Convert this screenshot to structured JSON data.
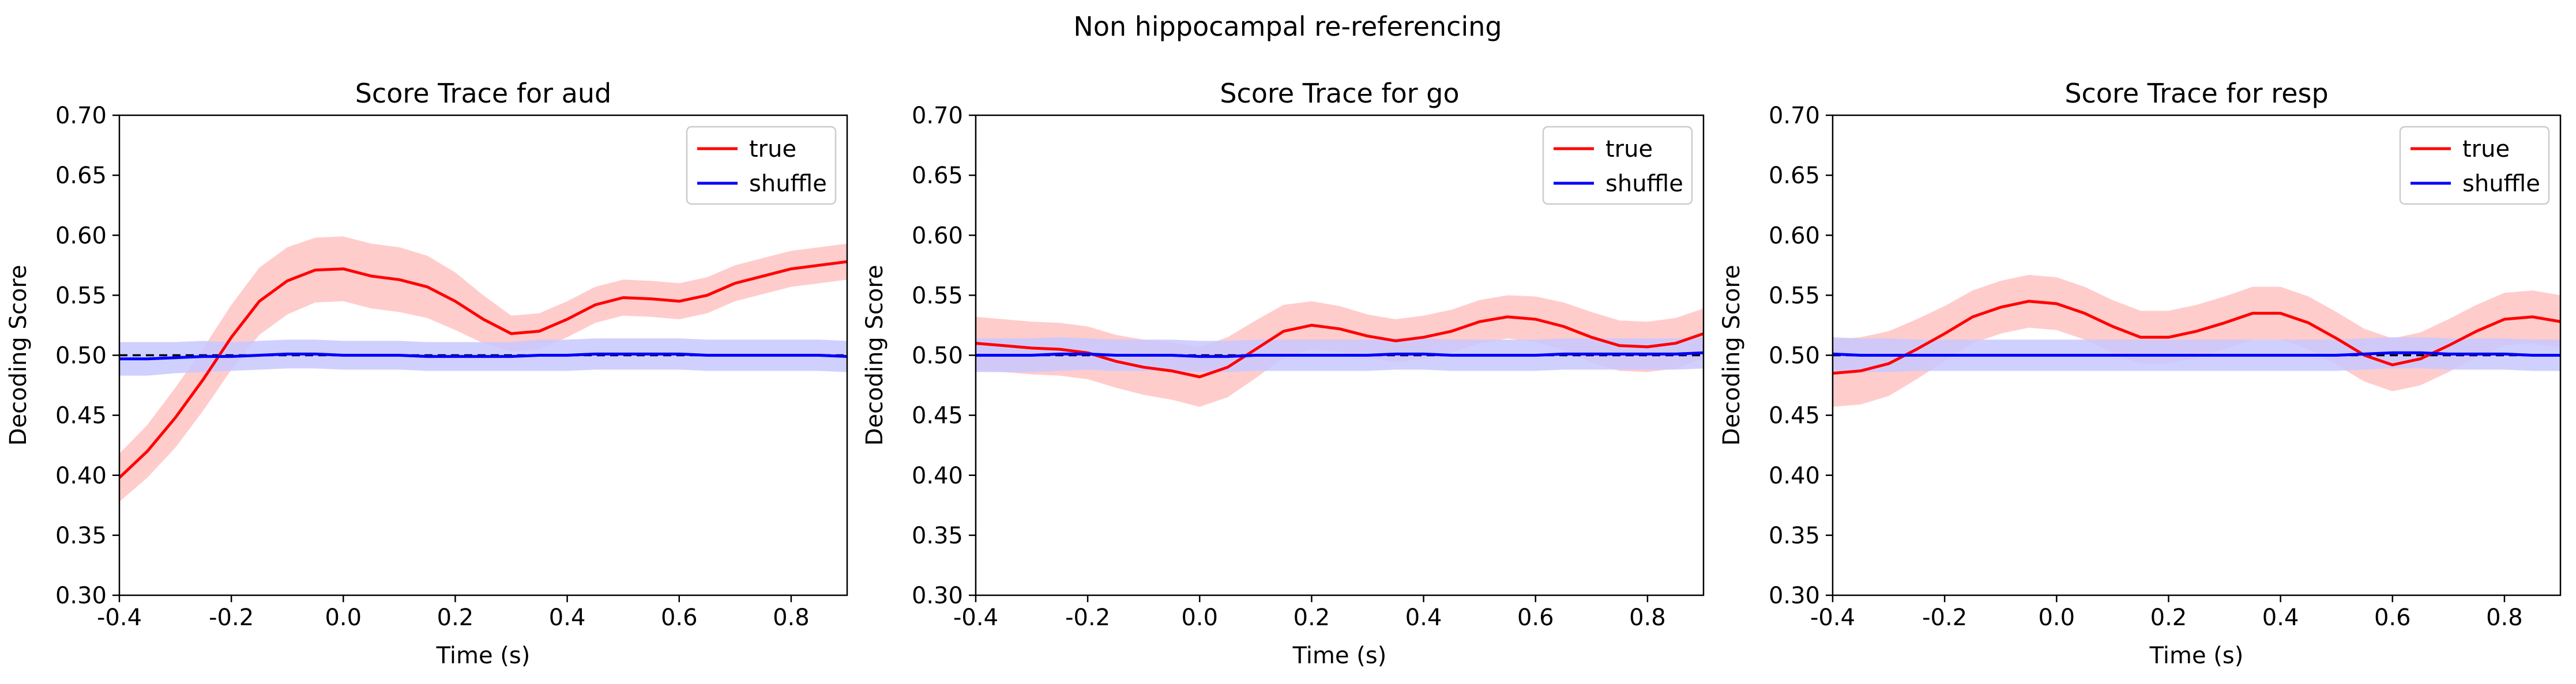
{
  "figure": {
    "suptitle": "Non hippocampal re-referencing"
  },
  "chart_data": [
    {
      "type": "line",
      "title": "Score Trace for aud",
      "xlabel": "Time (s)",
      "ylabel": "Decoding Score",
      "xlim": [
        -0.4,
        0.9
      ],
      "ylim": [
        0.3,
        0.7
      ],
      "xticks": [
        "-0.4",
        "-0.2",
        "0.0",
        "0.2",
        "0.4",
        "0.6",
        "0.8"
      ],
      "yticks": [
        "0.30",
        "0.35",
        "0.40",
        "0.45",
        "0.50",
        "0.55",
        "0.60",
        "0.65",
        "0.70"
      ],
      "chance_level": 0.5,
      "legend_position": "upper-right",
      "series": [
        {
          "name": "true",
          "color": "#ff0000",
          "band_color": "#ffcccc",
          "x": [
            -0.4,
            -0.35,
            -0.3,
            -0.25,
            -0.2,
            -0.15,
            -0.1,
            -0.05,
            0.0,
            0.05,
            0.1,
            0.15,
            0.2,
            0.25,
            0.3,
            0.35,
            0.4,
            0.45,
            0.5,
            0.55,
            0.6,
            0.65,
            0.7,
            0.75,
            0.8,
            0.85,
            0.9
          ],
          "values": [
            0.398,
            0.42,
            0.448,
            0.48,
            0.515,
            0.545,
            0.562,
            0.571,
            0.572,
            0.566,
            0.563,
            0.557,
            0.545,
            0.53,
            0.518,
            0.52,
            0.53,
            0.542,
            0.548,
            0.547,
            0.545,
            0.55,
            0.56,
            0.566,
            0.572,
            0.575,
            0.578
          ],
          "band": [
            0.02,
            0.022,
            0.025,
            0.026,
            0.027,
            0.028,
            0.028,
            0.027,
            0.027,
            0.027,
            0.027,
            0.026,
            0.024,
            0.02,
            0.015,
            0.015,
            0.015,
            0.015,
            0.015,
            0.015,
            0.015,
            0.015,
            0.015,
            0.015,
            0.015,
            0.015,
            0.015
          ]
        },
        {
          "name": "shuffle",
          "color": "#0000ff",
          "band_color": "#c8c8ff",
          "x": [
            -0.4,
            -0.35,
            -0.3,
            -0.25,
            -0.2,
            -0.15,
            -0.1,
            -0.05,
            0.0,
            0.05,
            0.1,
            0.15,
            0.2,
            0.25,
            0.3,
            0.35,
            0.4,
            0.45,
            0.5,
            0.55,
            0.6,
            0.65,
            0.7,
            0.75,
            0.8,
            0.85,
            0.9
          ],
          "values": [
            0.497,
            0.497,
            0.498,
            0.499,
            0.499,
            0.5,
            0.501,
            0.501,
            0.5,
            0.5,
            0.5,
            0.499,
            0.499,
            0.499,
            0.499,
            0.5,
            0.5,
            0.501,
            0.501,
            0.501,
            0.501,
            0.5,
            0.5,
            0.5,
            0.5,
            0.5,
            0.499
          ],
          "band": [
            0.014,
            0.014,
            0.013,
            0.013,
            0.012,
            0.012,
            0.012,
            0.012,
            0.012,
            0.012,
            0.012,
            0.012,
            0.012,
            0.012,
            0.012,
            0.013,
            0.013,
            0.013,
            0.013,
            0.013,
            0.013,
            0.013,
            0.013,
            0.013,
            0.013,
            0.013,
            0.013
          ]
        }
      ]
    },
    {
      "type": "line",
      "title": "Score Trace for go",
      "xlabel": "Time (s)",
      "ylabel": "Decoding Score",
      "xlim": [
        -0.4,
        0.9
      ],
      "ylim": [
        0.3,
        0.7
      ],
      "xticks": [
        "-0.4",
        "-0.2",
        "0.0",
        "0.2",
        "0.4",
        "0.6",
        "0.8"
      ],
      "yticks": [
        "0.30",
        "0.35",
        "0.40",
        "0.45",
        "0.50",
        "0.55",
        "0.60",
        "0.65",
        "0.70"
      ],
      "chance_level": 0.5,
      "legend_position": "upper-right",
      "series": [
        {
          "name": "true",
          "color": "#ff0000",
          "band_color": "#ffcccc",
          "x": [
            -0.4,
            -0.35,
            -0.3,
            -0.25,
            -0.2,
            -0.15,
            -0.1,
            -0.05,
            0.0,
            0.05,
            0.1,
            0.15,
            0.2,
            0.25,
            0.3,
            0.35,
            0.4,
            0.45,
            0.5,
            0.55,
            0.6,
            0.65,
            0.7,
            0.75,
            0.8,
            0.85,
            0.9
          ],
          "values": [
            0.51,
            0.508,
            0.506,
            0.505,
            0.502,
            0.495,
            0.49,
            0.487,
            0.482,
            0.49,
            0.505,
            0.52,
            0.525,
            0.522,
            0.516,
            0.512,
            0.515,
            0.52,
            0.528,
            0.532,
            0.53,
            0.524,
            0.515,
            0.508,
            0.507,
            0.51,
            0.518
          ],
          "band": [
            0.022,
            0.022,
            0.022,
            0.022,
            0.022,
            0.022,
            0.023,
            0.024,
            0.025,
            0.025,
            0.024,
            0.022,
            0.02,
            0.019,
            0.018,
            0.018,
            0.018,
            0.018,
            0.018,
            0.018,
            0.019,
            0.02,
            0.021,
            0.021,
            0.021,
            0.021,
            0.021
          ]
        },
        {
          "name": "shuffle",
          "color": "#0000ff",
          "band_color": "#c8c8ff",
          "x": [
            -0.4,
            -0.35,
            -0.3,
            -0.25,
            -0.2,
            -0.15,
            -0.1,
            -0.05,
            0.0,
            0.05,
            0.1,
            0.15,
            0.2,
            0.25,
            0.3,
            0.35,
            0.4,
            0.45,
            0.5,
            0.55,
            0.6,
            0.65,
            0.7,
            0.75,
            0.8,
            0.85,
            0.9
          ],
          "values": [
            0.5,
            0.5,
            0.5,
            0.501,
            0.501,
            0.5,
            0.5,
            0.5,
            0.499,
            0.499,
            0.5,
            0.5,
            0.5,
            0.5,
            0.5,
            0.501,
            0.501,
            0.5,
            0.5,
            0.5,
            0.5,
            0.501,
            0.501,
            0.501,
            0.501,
            0.501,
            0.502
          ],
          "band": [
            0.014,
            0.014,
            0.014,
            0.014,
            0.013,
            0.013,
            0.013,
            0.013,
            0.013,
            0.013,
            0.013,
            0.013,
            0.013,
            0.013,
            0.013,
            0.013,
            0.013,
            0.013,
            0.013,
            0.013,
            0.013,
            0.013,
            0.013,
            0.013,
            0.013,
            0.013,
            0.013
          ]
        }
      ]
    },
    {
      "type": "line",
      "title": "Score Trace for resp",
      "xlabel": "Time (s)",
      "ylabel": "Decoding Score",
      "xlim": [
        -0.4,
        0.9
      ],
      "ylim": [
        0.3,
        0.7
      ],
      "xticks": [
        "-0.4",
        "-0.2",
        "0.0",
        "0.2",
        "0.4",
        "0.6",
        "0.8"
      ],
      "yticks": [
        "0.30",
        "0.35",
        "0.40",
        "0.45",
        "0.50",
        "0.55",
        "0.60",
        "0.65",
        "0.70"
      ],
      "chance_level": 0.5,
      "legend_position": "upper-right",
      "series": [
        {
          "name": "true",
          "color": "#ff0000",
          "band_color": "#ffcccc",
          "x": [
            -0.4,
            -0.35,
            -0.3,
            -0.25,
            -0.2,
            -0.15,
            -0.1,
            -0.05,
            0.0,
            0.05,
            0.1,
            0.15,
            0.2,
            0.25,
            0.3,
            0.35,
            0.4,
            0.45,
            0.5,
            0.55,
            0.6,
            0.65,
            0.7,
            0.75,
            0.8,
            0.85,
            0.9
          ],
          "values": [
            0.485,
            0.487,
            0.493,
            0.505,
            0.518,
            0.532,
            0.54,
            0.545,
            0.543,
            0.535,
            0.524,
            0.515,
            0.515,
            0.52,
            0.527,
            0.535,
            0.535,
            0.527,
            0.514,
            0.5,
            0.492,
            0.497,
            0.508,
            0.52,
            0.53,
            0.532,
            0.528
          ],
          "band": [
            0.028,
            0.028,
            0.027,
            0.025,
            0.023,
            0.022,
            0.022,
            0.022,
            0.022,
            0.022,
            0.022,
            0.022,
            0.022,
            0.022,
            0.022,
            0.022,
            0.022,
            0.022,
            0.022,
            0.022,
            0.022,
            0.022,
            0.022,
            0.022,
            0.022,
            0.022,
            0.022
          ]
        },
        {
          "name": "shuffle",
          "color": "#0000ff",
          "band_color": "#c8c8ff",
          "x": [
            -0.4,
            -0.35,
            -0.3,
            -0.25,
            -0.2,
            -0.15,
            -0.1,
            -0.05,
            0.0,
            0.05,
            0.1,
            0.15,
            0.2,
            0.25,
            0.3,
            0.35,
            0.4,
            0.45,
            0.5,
            0.55,
            0.6,
            0.65,
            0.7,
            0.75,
            0.8,
            0.85,
            0.9
          ],
          "values": [
            0.501,
            0.5,
            0.5,
            0.5,
            0.5,
            0.5,
            0.5,
            0.5,
            0.5,
            0.5,
            0.5,
            0.5,
            0.5,
            0.5,
            0.5,
            0.5,
            0.5,
            0.5,
            0.5,
            0.501,
            0.502,
            0.502,
            0.501,
            0.501,
            0.501,
            0.5,
            0.5
          ],
          "band": [
            0.014,
            0.014,
            0.014,
            0.013,
            0.013,
            0.013,
            0.013,
            0.013,
            0.013,
            0.013,
            0.013,
            0.013,
            0.013,
            0.013,
            0.013,
            0.013,
            0.013,
            0.013,
            0.013,
            0.013,
            0.013,
            0.013,
            0.013,
            0.013,
            0.013,
            0.013,
            0.013
          ]
        }
      ]
    }
  ]
}
